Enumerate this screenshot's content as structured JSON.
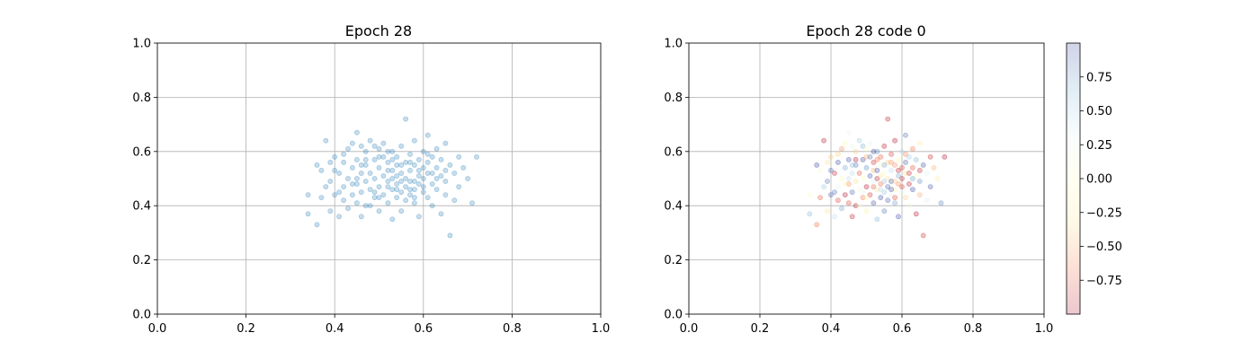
{
  "chart_data": [
    {
      "type": "scatter",
      "title": "Epoch 28",
      "xlabel": "",
      "ylabel": "",
      "xlim": [
        0,
        1
      ],
      "ylim": [
        0,
        1
      ],
      "xticks": [
        "0.0",
        "0.2",
        "0.4",
        "0.6",
        "0.8",
        "1.0"
      ],
      "yticks": [
        "0.0",
        "0.2",
        "0.4",
        "0.6",
        "0.8",
        "1.0"
      ],
      "grid": true,
      "color": "#1f77b4",
      "alpha": 0.25,
      "points": [
        [
          0.34,
          0.37
        ],
        [
          0.34,
          0.44
        ],
        [
          0.36,
          0.33
        ],
        [
          0.36,
          0.55
        ],
        [
          0.37,
          0.43
        ],
        [
          0.37,
          0.53
        ],
        [
          0.38,
          0.47
        ],
        [
          0.38,
          0.64
        ],
        [
          0.39,
          0.49
        ],
        [
          0.39,
          0.38
        ],
        [
          0.4,
          0.58
        ],
        [
          0.4,
          0.44
        ],
        [
          0.41,
          0.52
        ],
        [
          0.41,
          0.36
        ],
        [
          0.42,
          0.47
        ],
        [
          0.42,
          0.42
        ],
        [
          0.42,
          0.56
        ],
        [
          0.43,
          0.61
        ],
        [
          0.43,
          0.5
        ],
        [
          0.43,
          0.39
        ],
        [
          0.44,
          0.44
        ],
        [
          0.44,
          0.54
        ],
        [
          0.44,
          0.63
        ],
        [
          0.45,
          0.48
        ],
        [
          0.45,
          0.57
        ],
        [
          0.45,
          0.41
        ],
        [
          0.45,
          0.67
        ],
        [
          0.46,
          0.52
        ],
        [
          0.46,
          0.36
        ],
        [
          0.46,
          0.45
        ],
        [
          0.47,
          0.6
        ],
        [
          0.47,
          0.49
        ],
        [
          0.47,
          0.55
        ],
        [
          0.47,
          0.4
        ],
        [
          0.48,
          0.64
        ],
        [
          0.48,
          0.46
        ],
        [
          0.48,
          0.52
        ],
        [
          0.49,
          0.57
        ],
        [
          0.49,
          0.43
        ],
        [
          0.49,
          0.5
        ],
        [
          0.49,
          0.62
        ],
        [
          0.5,
          0.47
        ],
        [
          0.5,
          0.54
        ],
        [
          0.5,
          0.38
        ],
        [
          0.5,
          0.58
        ],
        [
          0.51,
          0.51
        ],
        [
          0.51,
          0.44
        ],
        [
          0.51,
          0.63
        ],
        [
          0.52,
          0.49
        ],
        [
          0.52,
          0.56
        ],
        [
          0.52,
          0.41
        ],
        [
          0.52,
          0.53
        ],
        [
          0.53,
          0.46
        ],
        [
          0.53,
          0.6
        ],
        [
          0.53,
          0.5
        ],
        [
          0.53,
          0.35
        ],
        [
          0.54,
          0.55
        ],
        [
          0.54,
          0.48
        ],
        [
          0.54,
          0.43
        ],
        [
          0.54,
          0.58
        ],
        [
          0.55,
          0.52
        ],
        [
          0.55,
          0.45
        ],
        [
          0.55,
          0.62
        ],
        [
          0.55,
          0.38
        ],
        [
          0.56,
          0.5
        ],
        [
          0.56,
          0.56
        ],
        [
          0.56,
          0.47
        ],
        [
          0.56,
          0.72
        ],
        [
          0.57,
          0.53
        ],
        [
          0.57,
          0.44
        ],
        [
          0.57,
          0.59
        ],
        [
          0.57,
          0.49
        ],
        [
          0.58,
          0.55
        ],
        [
          0.58,
          0.46
        ],
        [
          0.58,
          0.41
        ],
        [
          0.58,
          0.64
        ],
        [
          0.59,
          0.51
        ],
        [
          0.59,
          0.57
        ],
        [
          0.59,
          0.48
        ],
        [
          0.59,
          0.36
        ],
        [
          0.6,
          0.54
        ],
        [
          0.6,
          0.45
        ],
        [
          0.6,
          0.6
        ],
        [
          0.6,
          0.5
        ],
        [
          0.61,
          0.56
        ],
        [
          0.61,
          0.43
        ],
        [
          0.61,
          0.52
        ],
        [
          0.61,
          0.66
        ],
        [
          0.62,
          0.48
        ],
        [
          0.62,
          0.58
        ],
        [
          0.62,
          0.4
        ],
        [
          0.63,
          0.54
        ],
        [
          0.63,
          0.46
        ],
        [
          0.63,
          0.61
        ],
        [
          0.64,
          0.51
        ],
        [
          0.64,
          0.57
        ],
        [
          0.64,
          0.37
        ],
        [
          0.65,
          0.49
        ],
        [
          0.65,
          0.63
        ],
        [
          0.65,
          0.44
        ],
        [
          0.66,
          0.55
        ],
        [
          0.66,
          0.29
        ],
        [
          0.67,
          0.52
        ],
        [
          0.67,
          0.42
        ],
        [
          0.68,
          0.58
        ],
        [
          0.68,
          0.47
        ],
        [
          0.69,
          0.54
        ],
        [
          0.7,
          0.5
        ],
        [
          0.71,
          0.41
        ],
        [
          0.72,
          0.58
        ],
        [
          0.46,
          0.55
        ],
        [
          0.5,
          0.61
        ],
        [
          0.53,
          0.57
        ],
        [
          0.57,
          0.46
        ],
        [
          0.52,
          0.47
        ],
        [
          0.48,
          0.4
        ],
        [
          0.55,
          0.49
        ],
        [
          0.59,
          0.53
        ],
        [
          0.51,
          0.58
        ],
        [
          0.54,
          0.51
        ],
        [
          0.58,
          0.49
        ],
        [
          0.56,
          0.42
        ],
        [
          0.62,
          0.52
        ],
        [
          0.45,
          0.5
        ],
        [
          0.49,
          0.45
        ],
        [
          0.6,
          0.47
        ],
        [
          0.53,
          0.53
        ],
        [
          0.57,
          0.56
        ],
        [
          0.44,
          0.48
        ],
        [
          0.63,
          0.5
        ],
        [
          0.47,
          0.57
        ],
        [
          0.55,
          0.55
        ],
        [
          0.5,
          0.43
        ],
        [
          0.61,
          0.59
        ],
        [
          0.52,
          0.6
        ],
        [
          0.58,
          0.43
        ],
        [
          0.46,
          0.62
        ],
        [
          0.54,
          0.46
        ],
        [
          0.65,
          0.53
        ],
        [
          0.4,
          0.53
        ],
        [
          0.42,
          0.59
        ],
        [
          0.39,
          0.56
        ],
        [
          0.41,
          0.45
        ]
      ]
    },
    {
      "type": "scatter",
      "title": "Epoch 28 code 0",
      "xlabel": "",
      "ylabel": "",
      "xlim": [
        0,
        1
      ],
      "ylim": [
        0,
        1
      ],
      "xticks": [
        "0.0",
        "0.2",
        "0.4",
        "0.6",
        "0.8",
        "1.0"
      ],
      "yticks": [
        "0.0",
        "0.2",
        "0.4",
        "0.6",
        "0.8",
        "1.0"
      ],
      "grid": true,
      "alpha": 0.3,
      "colormap": "RdYlBu",
      "colorbar": {
        "range": [
          -1,
          1
        ],
        "ticks": [
          "−0.75",
          "−0.50",
          "−0.25",
          "0.00",
          "0.25",
          "0.50",
          "0.75"
        ],
        "tick_values": [
          -0.75,
          -0.5,
          -0.25,
          0,
          0.25,
          0.5,
          0.75
        ],
        "colors": [
          "#a50026",
          "#f46d43",
          "#fee090",
          "#ffffbf",
          "#e0f3f8",
          "#74add1",
          "#313695"
        ]
      }
    }
  ]
}
